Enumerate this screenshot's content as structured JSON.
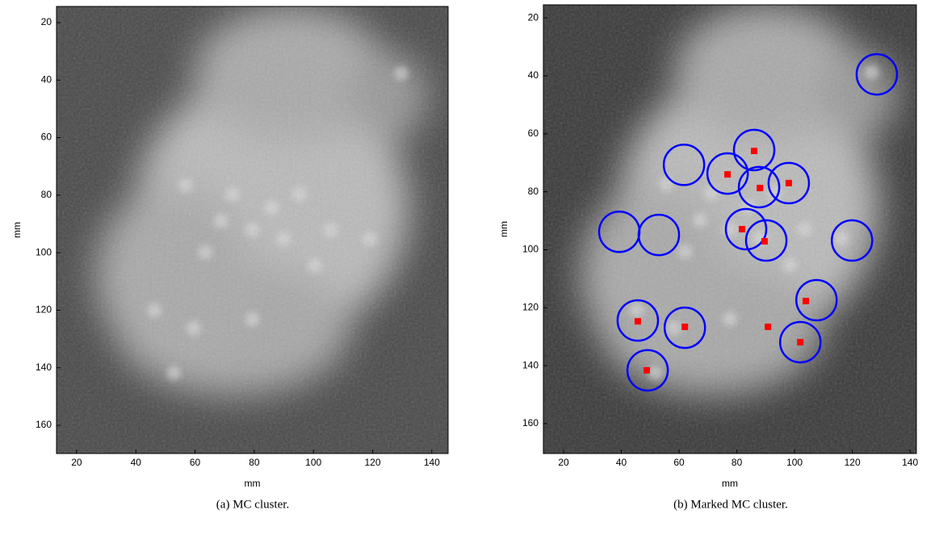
{
  "chart_data": [
    {
      "type": "image",
      "xlabel": "mm",
      "ylabel": "mm",
      "caption": "(a) MC cluster.",
      "xlim": [
        13.2,
        145.5
      ],
      "ylim": [
        169.8,
        14.4
      ],
      "xticks": [
        20,
        40,
        60,
        80,
        100,
        120,
        140
      ],
      "yticks": [
        20,
        40,
        60,
        80,
        100,
        120,
        140,
        160
      ]
    },
    {
      "type": "scatter",
      "xlabel": "mm",
      "ylabel": "mm",
      "caption": "(b) Marked MC cluster.",
      "xlim": [
        13,
        142.2
      ],
      "ylim": [
        170.3,
        15.5
      ],
      "xticks": [
        20,
        40,
        60,
        80,
        100,
        120,
        140
      ],
      "yticks": [
        20,
        40,
        60,
        80,
        100,
        120,
        140,
        160
      ],
      "circles": {
        "color": "#0000ff",
        "r": 7,
        "x": [
          128.5,
          86,
          61.7,
          76.8,
          87.7,
          98,
          39.3,
          53,
          83.2,
          90.2,
          119.9,
          107.6,
          45.7,
          62,
          102,
          49.1
        ],
        "y": [
          39.5,
          65.6,
          70.7,
          73.7,
          78.4,
          77,
          93.8,
          94.9,
          92.9,
          96.8,
          96.8,
          117.4,
          124.4,
          126.9,
          131.9,
          141.6
        ]
      },
      "points": {
        "color": "#ff0000",
        "x": [
          86,
          76.8,
          88,
          98,
          81.8,
          89.6,
          103.9,
          45.7,
          62,
          90.8,
          102,
          48.8
        ],
        "y": [
          65.9,
          74,
          78.7,
          77,
          92.9,
          97.1,
          117.7,
          124.7,
          126.6,
          126.6,
          131.9,
          141.6
        ]
      }
    }
  ]
}
